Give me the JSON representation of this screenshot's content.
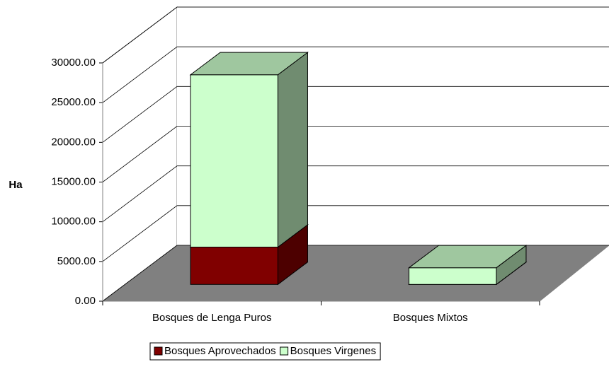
{
  "chart_data": {
    "type": "bar3d_stacked",
    "y_label": "Ha",
    "categories": [
      "Bosques de Lenga Puros",
      "Bosques Mixtos"
    ],
    "series": [
      {
        "name": "Bosques Aprovechados",
        "color": "#800000",
        "values": [
          4700,
          0
        ]
      },
      {
        "name": "Bosques Virgenes",
        "color": "#ccffcc",
        "values": [
          21700,
          2100
        ]
      }
    ],
    "ylim": [
      0,
      30000
    ],
    "yticks": [
      {
        "value": 0,
        "label": "0.00"
      },
      {
        "value": 5000,
        "label": "5000.00"
      },
      {
        "value": 10000,
        "label": "10000.00"
      },
      {
        "value": 15000,
        "label": "15000.00"
      },
      {
        "value": 20000,
        "label": "20000.00"
      },
      {
        "value": 25000,
        "label": "25000.00"
      },
      {
        "value": 30000,
        "label": "30000.00"
      }
    ],
    "grid": true,
    "legend": "bottom"
  }
}
